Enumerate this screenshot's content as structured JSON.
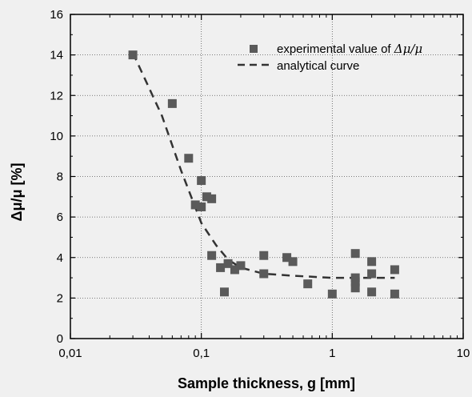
{
  "chart_data": {
    "type": "scatter",
    "title": "",
    "xlabel": "Sample thickness, g [mm]",
    "ylabel": "Δμ/μ [%]",
    "xscale": "log",
    "xlim": [
      0.01,
      10
    ],
    "ylim": [
      0,
      16
    ],
    "grid": true,
    "legend_position": "top-right",
    "x_tick_labels": [
      "0,01",
      "0,1",
      "1",
      "10"
    ],
    "y_tick_labels": [
      "0",
      "2",
      "4",
      "6",
      "8",
      "10",
      "12",
      "14",
      "16"
    ],
    "series": [
      {
        "name": "experimental value of Δμ/μ",
        "name_prefix": "experimental value of ",
        "name_symbol": "Δμ/μ",
        "kind": "scatter",
        "marker": "square",
        "color": "#5a5a5a",
        "points": [
          [
            0.03,
            14.0
          ],
          [
            0.06,
            11.6
          ],
          [
            0.08,
            8.9
          ],
          [
            0.09,
            6.6
          ],
          [
            0.1,
            7.8
          ],
          [
            0.1,
            6.5
          ],
          [
            0.11,
            7.0
          ],
          [
            0.12,
            6.9
          ],
          [
            0.12,
            4.1
          ],
          [
            0.14,
            3.5
          ],
          [
            0.15,
            2.3
          ],
          [
            0.16,
            3.7
          ],
          [
            0.18,
            3.4
          ],
          [
            0.2,
            3.6
          ],
          [
            0.3,
            4.1
          ],
          [
            0.3,
            3.2
          ],
          [
            0.45,
            4.0
          ],
          [
            0.5,
            3.8
          ],
          [
            0.65,
            2.7
          ],
          [
            1.0,
            2.2
          ],
          [
            1.5,
            4.2
          ],
          [
            1.5,
            3.0
          ],
          [
            1.5,
            2.8
          ],
          [
            1.5,
            2.5
          ],
          [
            2.0,
            3.8
          ],
          [
            2.0,
            3.2
          ],
          [
            2.0,
            2.3
          ],
          [
            3.0,
            3.4
          ],
          [
            3.0,
            2.2
          ]
        ]
      },
      {
        "name": "analytical curve",
        "kind": "line",
        "dash": "dashed",
        "color": "#333333",
        "points": [
          [
            0.03,
            14.1
          ],
          [
            0.05,
            11.0
          ],
          [
            0.07,
            8.3
          ],
          [
            0.1,
            5.7
          ],
          [
            0.13,
            4.6
          ],
          [
            0.16,
            3.9
          ],
          [
            0.2,
            3.5
          ],
          [
            0.3,
            3.2
          ],
          [
            0.5,
            3.1
          ],
          [
            1.0,
            3.0
          ],
          [
            2.0,
            3.0
          ],
          [
            3.0,
            3.0
          ]
        ]
      }
    ]
  }
}
